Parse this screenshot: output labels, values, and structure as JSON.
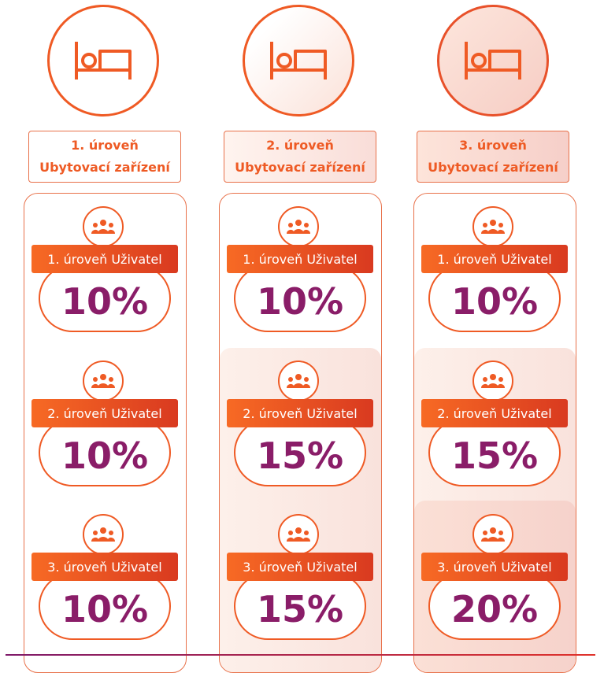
{
  "colors": {
    "accent": "#ef5a24",
    "value": "#8a1d68"
  },
  "columns": [
    {
      "level_line1": "1. úroveň",
      "level_line2": "Ubytovací zařízení",
      "tiers": [
        {
          "label": "1. úroveň Uživatel",
          "value": "10%"
        },
        {
          "label": "2. úroveň Uživatel",
          "value": "10%"
        },
        {
          "label": "3. úroveň Uživatel",
          "value": "10%"
        }
      ]
    },
    {
      "level_line1": "2. úroveň",
      "level_line2": "Ubytovací zařízení",
      "tiers": [
        {
          "label": "1. úroveň Uživatel",
          "value": "10%"
        },
        {
          "label": "2. úroveň Uživatel",
          "value": "15%"
        },
        {
          "label": "3. úroveň Uživatel",
          "value": "15%"
        }
      ]
    },
    {
      "level_line1": "3. úroveň",
      "level_line2": "Ubytovací zařízení",
      "tiers": [
        {
          "label": "1. úroveň Uživatel",
          "value": "10%"
        },
        {
          "label": "2. úroveň Uživatel",
          "value": "15%"
        },
        {
          "label": "3. úroveň Uživatel",
          "value": "20%"
        }
      ]
    }
  ],
  "icons": {
    "header": "bed-icon",
    "tier": "users-group-icon"
  }
}
